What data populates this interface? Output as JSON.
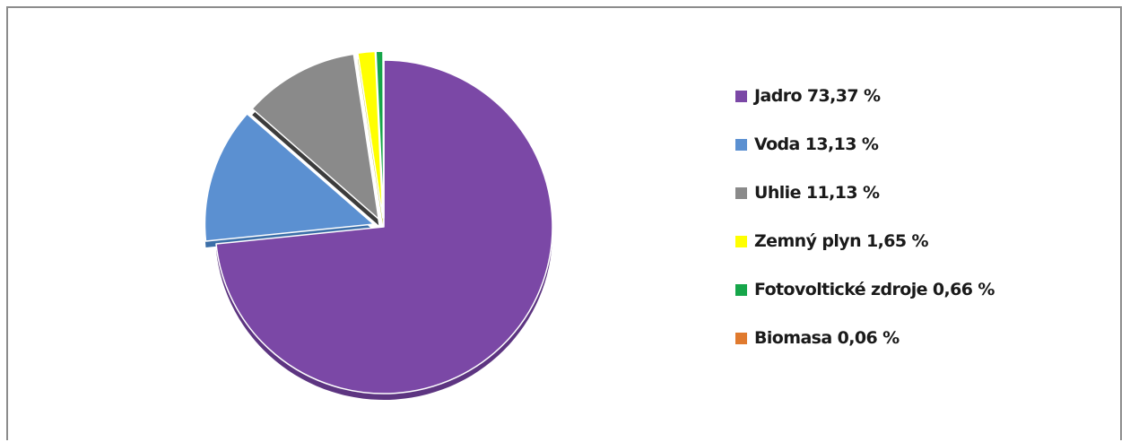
{
  "chart_data": {
    "type": "pie",
    "slices": [
      {
        "label": "Jadro 73,37 %",
        "value": 73.37,
        "color": "#7b48a6",
        "side": "#5d3581"
      },
      {
        "label": "Voda 13,13 %",
        "value": 13.13,
        "color": "#5b90d1",
        "side": "#3c6fa8"
      },
      {
        "label": "Uhlie 11,13 %",
        "value": 11.13,
        "color": "#8a8a8a",
        "side": "#3c3c3c"
      },
      {
        "label": "Zemný plyn 1,65 %",
        "value": 1.65,
        "color": "#ffff00",
        "side": "#b3b300"
      },
      {
        "label": "Fotovoltické zdroje 0,66 %",
        "value": 0.66,
        "color": "#16a64a",
        "side": "#0d7a33"
      },
      {
        "label": "Biomasa 0,06 %",
        "value": 0.06,
        "color": "#e07a2e",
        "side": "#a8561c"
      }
    ],
    "legend_position": "right",
    "exploded": true,
    "style": "3d-tilted"
  }
}
